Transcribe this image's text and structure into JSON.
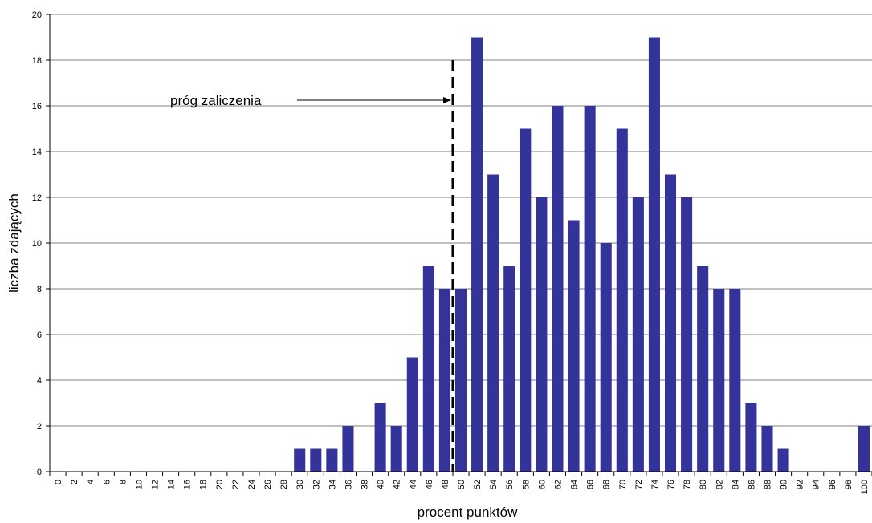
{
  "chart_data": {
    "type": "bar",
    "categories": [
      "0",
      "2",
      "4",
      "6",
      "8",
      "10",
      "12",
      "14",
      "16",
      "18",
      "20",
      "22",
      "24",
      "26",
      "28",
      "30",
      "32",
      "34",
      "36",
      "38",
      "40",
      "42",
      "44",
      "46",
      "48",
      "50",
      "52",
      "54",
      "56",
      "58",
      "60",
      "62",
      "64",
      "66",
      "68",
      "70",
      "72",
      "74",
      "76",
      "78",
      "80",
      "82",
      "84",
      "86",
      "88",
      "90",
      "92",
      "94",
      "96",
      "98",
      "100"
    ],
    "values": [
      0,
      0,
      0,
      0,
      0,
      0,
      0,
      0,
      0,
      0,
      0,
      0,
      0,
      0,
      0,
      1,
      1,
      1,
      2,
      0,
      3,
      2,
      5,
      9,
      8,
      8,
      19,
      13,
      9,
      15,
      12,
      16,
      11,
      16,
      10,
      15,
      12,
      19,
      13,
      12,
      9,
      8,
      8,
      3,
      2,
      1,
      0,
      0,
      0,
      0,
      2
    ],
    "xlabel": "procent punktów",
    "ylabel": "liczba zdających",
    "ylim": [
      0,
      20
    ],
    "yticks": [
      "0",
      "2",
      "4",
      "6",
      "8",
      "10",
      "12",
      "14",
      "16",
      "18",
      "20"
    ],
    "grid": true,
    "legend": "none",
    "bar_color": "#333399",
    "annotation": {
      "text": "próg zaliczenia",
      "threshold_x": 49,
      "line_top_y": 18
    }
  }
}
